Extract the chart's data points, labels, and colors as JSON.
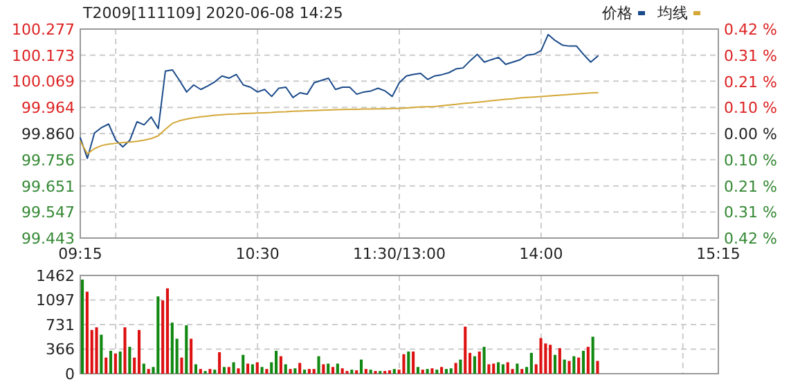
{
  "chart_data": [
    {
      "type": "line",
      "title": "T2009[111109] 2020-06-08 14:25",
      "categories": [
        "09:15",
        null,
        null,
        null,
        null,
        null,
        null,
        null,
        null,
        null,
        null,
        null,
        null,
        null,
        null,
        null,
        null,
        null,
        null,
        null,
        null,
        null,
        null,
        null,
        null,
        "10:30",
        null,
        null,
        null,
        null,
        null,
        null,
        null,
        null,
        null,
        null,
        null,
        null,
        null,
        null,
        null,
        null,
        null,
        null,
        null,
        "11:30/13:00",
        null,
        null,
        null,
        null,
        null,
        null,
        null,
        null,
        null,
        null,
        null,
        null,
        null,
        null,
        null,
        null,
        null,
        null,
        null,
        "14:00",
        null,
        null,
        null,
        null,
        null,
        null,
        null,
        null,
        null,
        null,
        null,
        null,
        null,
        null,
        null,
        null,
        null,
        null,
        null,
        null,
        null,
        null,
        null,
        null,
        "15:15"
      ],
      "series": [
        {
          "name": "价格",
          "color": "#1a4a8a",
          "values": [
            99.843,
            99.761,
            99.862,
            99.884,
            99.898,
            99.834,
            99.807,
            99.834,
            99.907,
            99.895,
            99.926,
            99.88,
            100.109,
            100.114,
            100.072,
            100.026,
            100.054,
            100.036,
            100.05,
            100.067,
            100.09,
            100.081,
            100.096,
            100.054,
            100.045,
            100.026,
            100.036,
            100.008,
            100.041,
            100.045,
            100.004,
            100.023,
            100.017,
            100.063,
            100.072,
            100.081,
            100.036,
            100.045,
            100.045,
            100.017,
            100.026,
            100.03,
            100.041,
            100.03,
            100.008,
            100.063,
            100.09,
            100.096,
            100.1,
            100.076,
            100.09,
            100.095,
            100.103,
            100.118,
            100.122,
            100.151,
            100.176,
            100.145,
            100.155,
            100.164,
            100.136,
            100.145,
            100.154,
            100.173,
            100.176,
            100.191,
            100.255,
            100.231,
            100.213,
            100.209,
            100.209,
            100.175,
            100.145,
            100.169,
            null,
            null,
            null,
            null,
            null,
            null,
            null,
            null,
            null,
            null,
            null,
            null,
            null,
            null,
            null,
            null,
            null
          ]
        },
        {
          "name": "均线",
          "color": "#d4a838",
          "values": [
            99.83,
            99.779,
            99.8,
            99.812,
            99.818,
            99.821,
            99.824,
            99.826,
            99.829,
            99.834,
            99.84,
            99.851,
            99.877,
            99.901,
            99.911,
            99.918,
            99.923,
            99.927,
            99.93,
            99.933,
            99.935,
            99.937,
            99.938,
            99.94,
            99.941,
            99.942,
            99.943,
            99.944,
            99.946,
            99.947,
            99.949,
            99.95,
            99.951,
            99.952,
            99.953,
            99.954,
            99.955,
            99.956,
            99.957,
            99.957,
            99.958,
            99.958,
            99.959,
            99.959,
            99.96,
            99.96,
            99.962,
            99.964,
            99.966,
            99.967,
            99.968,
            99.971,
            99.974,
            99.977,
            99.98,
            99.982,
            99.985,
            99.988,
            99.991,
            99.994,
            99.997,
            99.999,
            100.002,
            100.004,
            100.006,
            100.008,
            100.01,
            100.012,
            100.014,
            100.016,
            100.018,
            100.02,
            100.022,
            100.023,
            null,
            null,
            null,
            null,
            null,
            null,
            null,
            null,
            null,
            null,
            null,
            null,
            null,
            null,
            null,
            null,
            null
          ]
        }
      ],
      "ylim": [
        99.443,
        100.277
      ],
      "yticks": [
        {
          "value": 99.443,
          "label": "99.443"
        },
        {
          "value": 99.547,
          "label": "99.547"
        },
        {
          "value": 99.651,
          "label": "99.651"
        },
        {
          "value": 99.756,
          "label": "99.756"
        },
        {
          "value": 99.86,
          "label": "99.860"
        },
        {
          "value": 99.964,
          "label": "99.964"
        },
        {
          "value": 100.069,
          "label": "100.069"
        },
        {
          "value": 100.173,
          "label": "100.173"
        },
        {
          "value": 100.277,
          "label": "100.277"
        }
      ],
      "y2lim": [
        -0.42,
        0.42
      ],
      "y2ticks": [
        {
          "value": -0.42,
          "label": "0.42 %"
        },
        {
          "value": -0.315,
          "label": "0.31 %"
        },
        {
          "value": -0.21,
          "label": "0.21 %"
        },
        {
          "value": -0.105,
          "label": "0.10 %"
        },
        {
          "value": 0,
          "label": "0.00 %"
        },
        {
          "value": 0.105,
          "label": "0.10 %"
        },
        {
          "value": 0.21,
          "label": "0.21 %"
        },
        {
          "value": 0.315,
          "label": "0.31 %"
        },
        {
          "value": 0.42,
          "label": "0.42 %"
        }
      ],
      "grid": true,
      "legend": "top right"
    },
    {
      "type": "bar",
      "categories": [
        null,
        null,
        null,
        null,
        null,
        null,
        null,
        null,
        null,
        null,
        null,
        null,
        null,
        null,
        null,
        null,
        null,
        null,
        null,
        null,
        null,
        null,
        null,
        null,
        null,
        null,
        null,
        null,
        null,
        null,
        null,
        null,
        null,
        null,
        null,
        null,
        null,
        null,
        null,
        null,
        null,
        null,
        null,
        null,
        null,
        null,
        null,
        null,
        null,
        null,
        null,
        null,
        null,
        null,
        null,
        null,
        null,
        null,
        null,
        null,
        null,
        null,
        null,
        null,
        null,
        null,
        null,
        null,
        null,
        null,
        null,
        null,
        null,
        null,
        null,
        null,
        null,
        null,
        null,
        null,
        null,
        null,
        null,
        null,
        null,
        null,
        null,
        null,
        null,
        null,
        null,
        null,
        null,
        null,
        null,
        null,
        null,
        null,
        null,
        null,
        null,
        null,
        null,
        null,
        null,
        null,
        null,
        null,
        null,
        null,
        null,
        null,
        null,
        null,
        null,
        null,
        null,
        null,
        null,
        null,
        null,
        null,
        null,
        null,
        null,
        null,
        null,
        null,
        null,
        null,
        null,
        null,
        null,
        null,
        null,
        null
      ],
      "values": [
        1400,
        1220,
        650,
        690,
        580,
        240,
        340,
        300,
        330,
        690,
        400,
        240,
        650,
        150,
        70,
        100,
        1150,
        1090,
        1270,
        760,
        520,
        240,
        720,
        520,
        140,
        70,
        40,
        70,
        60,
        320,
        100,
        100,
        170,
        80,
        280,
        150,
        140,
        170,
        100,
        70,
        170,
        340,
        260,
        140,
        70,
        80,
        160,
        60,
        70,
        70,
        260,
        140,
        150,
        100,
        150,
        80,
        40,
        60,
        50,
        210,
        70,
        60,
        40,
        40,
        40,
        50,
        70,
        60,
        290,
        330,
        330,
        100,
        60,
        70,
        80,
        60,
        100,
        70,
        80,
        160,
        210,
        700,
        310,
        260,
        330,
        400,
        140,
        150,
        170,
        140,
        170,
        70,
        150,
        70,
        100,
        310,
        140,
        530,
        450,
        430,
        280,
        380,
        210,
        190,
        260,
        240,
        340,
        400,
        550,
        190,
        null,
        null,
        null,
        null,
        null,
        null,
        null,
        null,
        null,
        null,
        null,
        null,
        null,
        null,
        null,
        null,
        null,
        null,
        null,
        null,
        null,
        null,
        null,
        null,
        null,
        null
      ],
      "colors": [
        "#118811",
        "#dd1111",
        "#dd1111",
        "#dd1111",
        "#118811",
        "#dd1111",
        "#118811",
        "#dd1111",
        "#118811",
        "#dd1111",
        "#118811",
        "#dd1111",
        "#dd1111",
        "#118811",
        "#dd1111",
        "#118811",
        "#118811",
        "#dd1111",
        "#dd1111",
        "#118811",
        "#118811",
        "#dd1111",
        "#118811",
        "#dd1111",
        "#118811",
        "#dd1111",
        "#118811",
        "#dd1111",
        "#118811",
        "#dd1111",
        "#118811",
        "#dd1111",
        "#118811",
        "#dd1111",
        "#118811",
        "#dd1111",
        "#118811",
        "#dd1111",
        "#118811",
        "#dd1111",
        "#118811",
        "#118811",
        "#dd1111",
        "#118811",
        "#dd1111",
        "#118811",
        "#dd1111",
        "#118811",
        "#dd1111",
        "#dd1111",
        "#118811",
        "#dd1111",
        "#118811",
        "#dd1111",
        "#118811",
        "#dd1111",
        "#dd1111",
        "#118811",
        "#dd1111",
        "#118811",
        "#dd1111",
        "#118811",
        "#dd1111",
        "#118811",
        "#dd1111",
        "#dd1111",
        "#118811",
        "#dd1111",
        "#dd1111",
        "#118811",
        "#dd1111",
        "#118811",
        "#dd1111",
        "#118811",
        "#dd1111",
        "#118811",
        "#dd1111",
        "#118811",
        "#118811",
        "#dd1111",
        "#118811",
        "#dd1111",
        "#dd1111",
        "#118811",
        "#dd1111",
        "#118811",
        "#dd1111",
        "#dd1111",
        "#118811",
        "#118811",
        "#dd1111",
        "#dd1111",
        "#118811",
        "#dd1111",
        "#118811",
        "#118811",
        "#dd1111",
        "#dd1111",
        "#dd1111",
        "#dd1111",
        "#118811",
        "#dd1111",
        "#118811",
        "#dd1111",
        "#118811",
        "#dd1111",
        "#118811",
        "#dd1111",
        "#118811",
        "#dd1111",
        null,
        null,
        null,
        null,
        null,
        null,
        null,
        null,
        null,
        null,
        null,
        null,
        null,
        null,
        null,
        null,
        null,
        null,
        null,
        null,
        null,
        null,
        null,
        null,
        null,
        null
      ],
      "ylim": [
        0,
        1462
      ],
      "yticks": [
        0,
        366,
        731,
        1097,
        1462
      ],
      "grid": true,
      "tick_labels": "y"
    }
  ]
}
